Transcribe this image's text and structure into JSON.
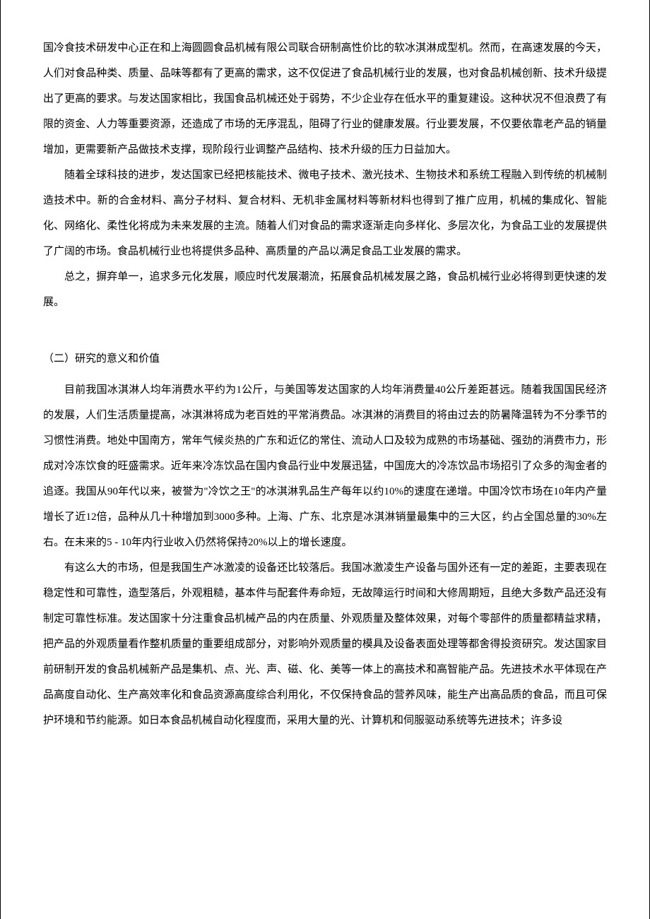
{
  "document": {
    "background_color": "#ffffff",
    "text_color": "#000000",
    "font_family": "SimSun",
    "font_size_pt": 11,
    "line_height": 2.4,
    "paragraphs": {
      "p1": "国冷食技术研发中心正在和上海圆圆食品机械有限公司联合研制高性价比的软冰淇淋成型机。然而，在高速发展的今天，人们对食品种类、质量、品味等都有了更高的需求，这不仅促进了食品机械行业的发展，也对食品机械创新、技术升级提出了更高的要求。与发达国家相比，我国食品机械还处于弱势，不少企业存在低水平的重复建设。这种状况不但浪费了有限的资金、人力等重要资源，还造成了市场的无序混乱，阻碍了行业的健康发展。行业要发展，不仅要依靠老产品的销量增加，更需要新产品做技术支撑，现阶段行业调整产品结构、技术升级的压力日益加大。",
      "p2": "随着全球科技的进步，发达国家已经把核能技术、微电子技术、激光技术、生物技术和系统工程融入到传统的机械制造技术中。新的合金材料、高分子材料、复合材料、无机非金属材料等新材料也得到了推广应用，机械的集成化、智能化、网络化、柔性化将成为未来发展的主流。随着人们对食品的需求逐渐走向多样化、多层次化，为食品工业的发展提供了广阔的市场。食品机械行业也将提供多品种、高质量的产品以满足食品工业发展的需求。",
      "p3": "总之，摒弃单一，追求多元化发展，顺应时代发展潮流，拓展食品机械发展之路，食品机械行业必将得到更快速的发展。",
      "heading": "（二）研究的意义和价值",
      "p4": "目前我国冰淇淋人均年消费水平约为1公斤，与美国等发达国家的人均年消费量40公斤差距甚远。随着我国国民经济的发展，人们生活质量提高，冰淇淋将成为老百姓的平常消费品。冰淇淋的消费目的将由过去的防暑降温转为不分季节的习惯性消费。地处中国南方，常年气候炎热的广东和近亿的常住、流动人口及较为成熟的市场基础、强劲的消费市力，形成对冷冻饮食的旺盛需求。近年来冷冻饮品在国内食品行业中发展迅猛，中国庞大的冷冻饮品市场招引了众多的淘金者的追逐。我国从90年代以来，被誉为\"冷饮之王\"的冰淇淋乳品生产每年以约10%的速度在递增。中国冷饮市场在10年内产量增长了近12倍，品种从几十种增加到3000多种。上海、广东、北京是冰淇淋销量最集中的三大区，约占全国总量的30%左右。在未来的5 - 10年内行业收入仍然将保持20%以上的增长速度。",
      "p5": "有这么大的市场，但是我国生产冰激凌的设备还比较落后。我国冰激凌生产设备与国外还有一定的差距，主要表现在稳定性和可靠性，造型落后，外观粗糙，基本件与配套件寿命短，无故障运行时间和大修周期短，且绝大多数产品还没有制定可靠性标准。发达国家十分注重食品机械产品的内在质量、外观质量及整体效果，对每个零部件的质量都精益求精，把产品的外观质量看作整机质量的重要组成部分，对影响外观质量的模具及设备表面处理等都舍得投资研究。发达国家目前研制开发的食品机械新产品是集机、点、光、声、磁、化、美等一体上的高技术和高智能产品。先进技术水平体现在产品高度自动化、生产高效率化和食品资源高度综合利用化，不仅保持食品的营养风味，能生产出高品质的食品，而且可保护环境和节约能源。如日本食品机械自动化程度而，采用大量的光、计算机和伺服驱动系统等先进技术；许多设"
    }
  }
}
